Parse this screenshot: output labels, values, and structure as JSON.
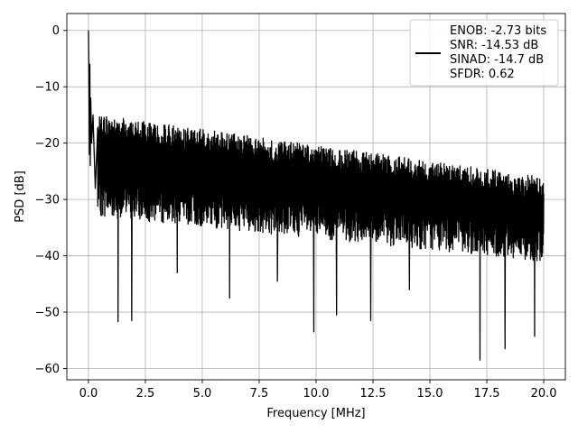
{
  "chart_data": {
    "type": "line",
    "title": "",
    "xlabel": "Frequency [MHz]",
    "ylabel": "PSD [dB]",
    "xlim": [
      -0.95,
      20.95
    ],
    "ylim": [
      -62,
      3
    ],
    "xticks": [
      0.0,
      2.5,
      5.0,
      7.5,
      10.0,
      12.5,
      15.0,
      17.5,
      20.0
    ],
    "xtick_labels": [
      "0.0",
      "2.5",
      "5.0",
      "7.5",
      "10.0",
      "12.5",
      "15.0",
      "17.5",
      "20.0"
    ],
    "yticks": [
      0,
      -10,
      -20,
      -30,
      -40,
      -50,
      -60
    ],
    "ytick_labels": [
      "0",
      "−10",
      "−20",
      "−30",
      "−40",
      "−50",
      "−60"
    ],
    "grid": true,
    "legend_position": "top-right",
    "legend_lines": [
      "ENOB: -2.73 bits",
      "SNR: -14.53 dB",
      "SINAD: -14.7 dB",
      "SFDR: 0.62"
    ],
    "series_color": "#000000",
    "series": [
      {
        "x": [
          0.0,
          0.02,
          0.04,
          0.06,
          0.08,
          0.1,
          0.14,
          0.2,
          0.3,
          0.4
        ],
        "y": [
          0,
          -8,
          -22,
          -6,
          -24,
          -12,
          -20,
          -15,
          -28,
          -18
        ]
      }
    ],
    "noise_floor": {
      "x_start": 0.4,
      "x_end": 20.0,
      "upper_envelope": [
        -15,
        -26
      ],
      "lower_envelope": [
        -30,
        -38
      ],
      "deep_nulls": [
        {
          "x": 1.3,
          "y": -51.7
        },
        {
          "x": 1.9,
          "y": -51.5
        },
        {
          "x": 6.2,
          "y": -47.5
        },
        {
          "x": 9.9,
          "y": -53.5
        },
        {
          "x": 10.9,
          "y": -50.5
        },
        {
          "x": 12.4,
          "y": -51.5
        },
        {
          "x": 17.2,
          "y": -58.5
        },
        {
          "x": 18.3,
          "y": -56.5
        },
        {
          "x": 19.6,
          "y": -54.3
        },
        {
          "x": 8.3,
          "y": -44.5
        },
        {
          "x": 14.1,
          "y": -46.0
        },
        {
          "x": 3.9,
          "y": -43.0
        }
      ]
    }
  }
}
